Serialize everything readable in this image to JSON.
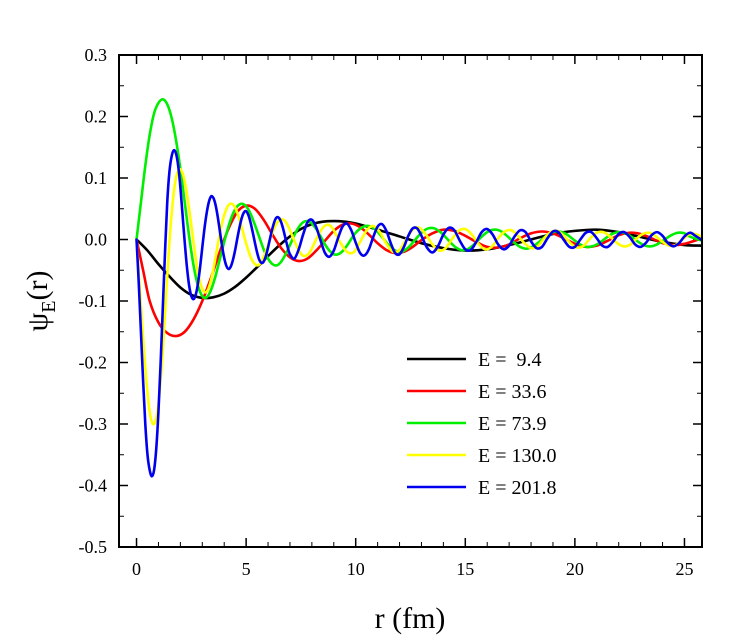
{
  "chart_data": {
    "type": "line",
    "title": "",
    "xlabel": "r (fm)",
    "ylabel": {
      "base": "ψ",
      "sub": "E",
      "suffix": "(r)"
    },
    "xlim": [
      -0.8,
      25.8
    ],
    "ylim": [
      -0.5,
      0.3
    ],
    "xticks": [
      0,
      5,
      10,
      15,
      20,
      25
    ],
    "xtick_labels": [
      "0",
      "5",
      "10",
      "15",
      "20",
      "25"
    ],
    "yticks": [
      -0.5,
      -0.4,
      -0.3,
      -0.2,
      -0.1,
      0.0,
      0.1,
      0.2,
      0.3
    ],
    "ytick_labels": [
      "-0.5",
      "-0.4",
      "-0.3",
      "-0.2",
      "-0.1",
      "0.0",
      "0.1",
      "0.2",
      "0.3"
    ],
    "grid": false,
    "legend_position": "lower-right",
    "series": [
      {
        "name": "E =  9.4",
        "color": "#000000",
        "x": [
          0,
          0.5,
          1,
          1.5,
          2,
          2.5,
          3,
          3.5,
          4,
          4.5,
          5,
          5.5,
          6,
          6.5,
          7,
          7.5,
          8,
          8.5,
          9,
          9.5,
          10,
          11,
          12,
          13,
          14,
          15,
          16,
          17,
          18,
          19,
          20,
          21,
          22,
          23,
          24,
          25,
          25.8
        ],
        "y": [
          0,
          -0.018,
          -0.04,
          -0.06,
          -0.078,
          -0.09,
          -0.095,
          -0.094,
          -0.088,
          -0.077,
          -0.062,
          -0.045,
          -0.027,
          -0.01,
          0.005,
          0.017,
          0.025,
          0.029,
          0.03,
          0.029,
          0.026,
          0.016,
          0.005,
          -0.006,
          -0.014,
          -0.018,
          -0.016,
          -0.009,
          0.0,
          0.009,
          0.014,
          0.016,
          0.012,
          0.004,
          -0.004,
          -0.009,
          -0.01
        ]
      },
      {
        "name": "E = 33.6",
        "color": "#ff0000",
        "x": [
          0,
          0.3,
          0.6,
          1,
          1.4,
          1.8,
          2.2,
          2.6,
          3,
          3.4,
          3.8,
          4.2,
          4.6,
          5,
          5.4,
          5.8,
          6.2,
          6.6,
          7,
          7.4,
          7.8,
          8.2,
          8.6,
          9,
          9.4,
          9.8,
          10.2,
          10.6,
          11,
          11.4,
          11.8,
          12.2,
          12.6,
          13,
          13.5,
          14,
          14.5,
          15,
          15.5,
          16,
          16.5,
          17,
          17.5,
          18,
          18.5,
          19,
          19.5,
          20,
          20.5,
          21,
          21.5,
          22,
          22.5,
          23,
          23.5,
          24,
          24.5,
          25,
          25.8
        ],
        "y": [
          0,
          -0.05,
          -0.1,
          -0.135,
          -0.152,
          -0.157,
          -0.15,
          -0.13,
          -0.1,
          -0.062,
          -0.02,
          0.018,
          0.045,
          0.055,
          0.05,
          0.032,
          0.008,
          -0.014,
          -0.029,
          -0.035,
          -0.031,
          -0.018,
          -0.002,
          0.014,
          0.024,
          0.026,
          0.02,
          0.008,
          -0.006,
          -0.017,
          -0.022,
          -0.02,
          -0.012,
          -0.001,
          0.01,
          0.016,
          0.014,
          0.006,
          -0.004,
          -0.012,
          -0.013,
          -0.008,
          0.002,
          0.01,
          0.013,
          0.01,
          0.002,
          -0.007,
          -0.012,
          -0.01,
          -0.002,
          0.007,
          0.011,
          0.009,
          0.002,
          -0.006,
          -0.009,
          -0.007,
          0.002
        ]
      },
      {
        "name": "E = 73.9",
        "color": "#00ee00",
        "x": [
          0,
          0.2,
          0.4,
          0.6,
          0.8,
          1,
          1.2,
          1.4,
          1.6,
          1.8,
          2,
          2.2,
          2.4,
          2.6,
          2.8,
          3,
          3.2,
          3.4,
          3.6,
          3.8,
          4,
          4.2,
          4.4,
          4.6,
          4.8,
          5,
          5.2,
          5.4,
          5.6,
          5.8,
          6,
          6.2,
          6.4,
          6.6,
          6.8,
          7,
          7.2,
          7.4,
          7.6,
          7.8,
          8,
          8.2,
          8.4,
          8.6,
          8.8,
          9,
          9.2,
          9.4,
          9.6,
          9.8,
          10,
          10.3,
          10.6,
          10.9,
          11.2,
          11.5,
          11.8,
          12.1,
          12.4,
          12.7,
          13,
          13.3,
          13.6,
          13.9,
          14.2,
          14.5,
          14.8,
          15.1,
          15.4,
          15.7,
          16,
          16.3,
          16.6,
          16.9,
          17.2,
          17.5,
          17.8,
          18.1,
          18.4,
          18.7,
          19,
          19.3,
          19.6,
          19.9,
          20.2,
          20.5,
          20.8,
          21.1,
          21.4,
          21.7,
          22,
          22.3,
          22.6,
          22.9,
          23.2,
          23.5,
          23.8,
          24.1,
          24.4,
          24.7,
          25,
          25.3,
          25.8
        ],
        "y": [
          0,
          0.06,
          0.12,
          0.17,
          0.205,
          0.222,
          0.228,
          0.22,
          0.198,
          0.162,
          0.115,
          0.06,
          0.005,
          -0.042,
          -0.075,
          -0.092,
          -0.094,
          -0.082,
          -0.06,
          -0.032,
          -0.004,
          0.022,
          0.042,
          0.054,
          0.058,
          0.054,
          0.042,
          0.024,
          0.004,
          -0.016,
          -0.031,
          -0.04,
          -0.042,
          -0.036,
          -0.024,
          -0.009,
          0.007,
          0.02,
          0.028,
          0.03,
          0.026,
          0.017,
          0.005,
          -0.008,
          -0.018,
          -0.024,
          -0.024,
          -0.019,
          -0.01,
          0.001,
          0.011,
          0.02,
          0.022,
          0.016,
          0.004,
          -0.009,
          -0.018,
          -0.02,
          -0.013,
          -0.001,
          0.011,
          0.018,
          0.018,
          0.011,
          0.0,
          -0.011,
          -0.017,
          -0.016,
          -0.008,
          0.003,
          0.012,
          0.016,
          0.014,
          0.006,
          -0.004,
          -0.012,
          -0.015,
          -0.011,
          -0.003,
          0.006,
          0.012,
          0.013,
          0.009,
          0.001,
          -0.007,
          -0.012,
          -0.011,
          -0.006,
          0.002,
          0.009,
          0.012,
          0.01,
          0.004,
          -0.004,
          -0.01,
          -0.011,
          -0.007,
          0.0,
          0.007,
          0.011,
          0.01,
          0.004,
          -0.002
        ]
      },
      {
        "name": "E = 130.0",
        "color": "#ffff00",
        "x": [
          0,
          0.15,
          0.3,
          0.45,
          0.6,
          0.75,
          0.9,
          1.05,
          1.2,
          1.35,
          1.5,
          1.65,
          1.8,
          1.95,
          2.1,
          2.25,
          2.4,
          2.55,
          2.7,
          2.85,
          3,
          3.15,
          3.3,
          3.45,
          3.6,
          3.75,
          3.9,
          4.05,
          4.2,
          4.35,
          4.5,
          4.65,
          4.8,
          4.95,
          5.1,
          5.25,
          5.4,
          5.55,
          5.7,
          5.85,
          6,
          6.15,
          6.3,
          6.45,
          6.6,
          6.75,
          6.9,
          7.05,
          7.2,
          7.35,
          7.5,
          7.65,
          7.8,
          7.95,
          8.1,
          8.25,
          8.4,
          8.55,
          8.7,
          8.85,
          9,
          9.3,
          9.6,
          9.9,
          10.2,
          10.5,
          10.8,
          11.1,
          11.4,
          11.7,
          12,
          12.3,
          12.6,
          12.9,
          13.2,
          13.5,
          13.8,
          14.1,
          14.4,
          14.7,
          15,
          15.3,
          15.6,
          15.9,
          16.2,
          16.5,
          16.8,
          17.1,
          17.4,
          17.7,
          18,
          18.3,
          18.6,
          18.9,
          19.2,
          19.5,
          19.8,
          20.1,
          20.4,
          20.7,
          21,
          21.3,
          21.6,
          21.9,
          22.2,
          22.5,
          22.8,
          23.1,
          23.4,
          23.7,
          24,
          24.3,
          24.6,
          24.9,
          25.2,
          25.5,
          25.8
        ],
        "y": [
          0,
          -0.08,
          -0.16,
          -0.23,
          -0.28,
          -0.3,
          -0.29,
          -0.25,
          -0.18,
          -0.09,
          -0.005,
          0.06,
          0.1,
          0.114,
          0.108,
          0.085,
          0.05,
          0.01,
          -0.03,
          -0.062,
          -0.08,
          -0.086,
          -0.078,
          -0.058,
          -0.03,
          0.0,
          0.026,
          0.045,
          0.056,
          0.058,
          0.052,
          0.038,
          0.02,
          0.0,
          -0.018,
          -0.032,
          -0.04,
          -0.042,
          -0.036,
          -0.024,
          -0.009,
          0.007,
          0.02,
          0.029,
          0.033,
          0.031,
          0.023,
          0.011,
          -0.002,
          -0.014,
          -0.023,
          -0.027,
          -0.025,
          -0.018,
          -0.007,
          0.004,
          0.014,
          0.021,
          0.024,
          0.022,
          0.015,
          -0.005,
          -0.02,
          -0.021,
          -0.004,
          0.015,
          0.022,
          0.012,
          -0.007,
          -0.02,
          -0.017,
          0.0,
          0.016,
          0.019,
          0.008,
          -0.008,
          -0.018,
          -0.014,
          0.001,
          0.014,
          0.017,
          0.008,
          -0.007,
          -0.016,
          -0.012,
          0.002,
          0.013,
          0.015,
          0.006,
          -0.006,
          -0.014,
          -0.011,
          0.002,
          0.012,
          0.014,
          0.006,
          -0.006,
          -0.013,
          -0.01,
          0.002,
          0.011,
          0.012,
          0.005,
          -0.005,
          -0.011,
          -0.009,
          0.001,
          0.009,
          0.011,
          0.005,
          -0.004,
          -0.01,
          -0.009,
          0.0,
          0.008,
          0.009,
          0.004
        ]
      },
      {
        "name": "E = 201.8",
        "color": "#0000ee",
        "x": [
          0,
          0.1,
          0.2,
          0.3,
          0.4,
          0.5,
          0.6,
          0.7,
          0.8,
          0.9,
          1.0,
          1.1,
          1.2,
          1.3,
          1.4,
          1.5,
          1.6,
          1.7,
          1.8,
          1.9,
          2.0,
          2.1,
          2.2,
          2.3,
          2.4,
          2.5,
          2.6,
          2.7,
          2.8,
          2.9,
          3.0,
          3.1,
          3.2,
          3.3,
          3.4,
          3.5,
          3.6,
          3.7,
          3.8,
          3.9,
          4.0,
          4.1,
          4.2,
          4.3,
          4.4,
          4.5,
          4.6,
          4.7,
          4.8,
          4.9,
          5.0,
          5.1,
          5.2,
          5.3,
          5.4,
          5.5,
          5.6,
          5.7,
          5.8,
          5.9,
          6.0,
          6.1,
          6.2,
          6.3,
          6.4,
          6.5,
          6.6,
          6.7,
          6.8,
          6.9,
          7.0,
          7.2,
          7.4,
          7.6,
          7.8,
          8.0,
          8.2,
          8.4,
          8.6,
          8.8,
          9.0,
          9.2,
          9.4,
          9.6,
          9.8,
          10.0,
          10.2,
          10.4,
          10.6,
          10.8,
          11.0,
          11.2,
          11.4,
          11.6,
          11.8,
          12.0,
          12.2,
          12.4,
          12.6,
          12.8,
          13.0,
          13.25,
          13.5,
          13.75,
          14.0,
          14.25,
          14.5,
          14.75,
          15.0,
          15.25,
          15.5,
          15.75,
          16.0,
          16.25,
          16.5,
          16.75,
          17.0,
          17.25,
          17.5,
          17.75,
          18.0,
          18.25,
          18.5,
          18.75,
          19.0,
          19.25,
          19.5,
          19.75,
          20.0,
          20.25,
          20.5,
          20.75,
          21.0,
          21.25,
          21.5,
          21.75,
          22.0,
          22.25,
          22.5,
          22.75,
          23.0,
          23.25,
          23.5,
          23.75,
          24.0,
          24.25,
          24.5,
          24.75,
          25.0,
          25.25,
          25.5,
          25.8
        ],
        "y": [
          0,
          -0.07,
          -0.15,
          -0.23,
          -0.3,
          -0.35,
          -0.375,
          -0.385,
          -0.375,
          -0.34,
          -0.28,
          -0.2,
          -0.11,
          -0.02,
          0.06,
          0.11,
          0.135,
          0.145,
          0.14,
          0.12,
          0.085,
          0.04,
          -0.005,
          -0.045,
          -0.075,
          -0.092,
          -0.097,
          -0.09,
          -0.072,
          -0.045,
          -0.013,
          0.018,
          0.043,
          0.061,
          0.07,
          0.068,
          0.057,
          0.038,
          0.014,
          -0.01,
          -0.03,
          -0.043,
          -0.048,
          -0.044,
          -0.033,
          -0.017,
          0.002,
          0.02,
          0.035,
          0.044,
          0.046,
          0.04,
          0.028,
          0.012,
          -0.005,
          -0.021,
          -0.033,
          -0.038,
          -0.036,
          -0.027,
          -0.013,
          0.003,
          0.018,
          0.03,
          0.036,
          0.035,
          0.028,
          0.016,
          0.001,
          -0.013,
          -0.024,
          -0.031,
          -0.016,
          0.008,
          0.028,
          0.032,
          0.02,
          -0.002,
          -0.022,
          -0.028,
          -0.018,
          0.003,
          0.021,
          0.026,
          0.015,
          -0.005,
          -0.022,
          -0.026,
          -0.016,
          0.004,
          0.021,
          0.025,
          0.014,
          -0.006,
          -0.022,
          -0.024,
          -0.012,
          0.006,
          0.018,
          0.018,
          0.006,
          -0.013,
          -0.021,
          -0.011,
          0.008,
          0.019,
          0.015,
          -0.002,
          -0.016,
          -0.017,
          -0.004,
          0.012,
          0.017,
          0.008,
          -0.008,
          -0.016,
          -0.01,
          0.005,
          0.015,
          0.012,
          -0.003,
          -0.014,
          -0.012,
          0.002,
          0.013,
          0.012,
          -0.001,
          -0.012,
          -0.012,
          0.0,
          0.011,
          0.012,
          0.002,
          -0.01,
          -0.012,
          -0.003,
          0.009,
          0.012,
          0.004,
          -0.008,
          -0.012,
          -0.005,
          0.007,
          0.012,
          0.006,
          -0.006,
          -0.011,
          -0.006,
          0.005,
          0.011,
          0.006,
          -0.001
        ]
      }
    ]
  }
}
